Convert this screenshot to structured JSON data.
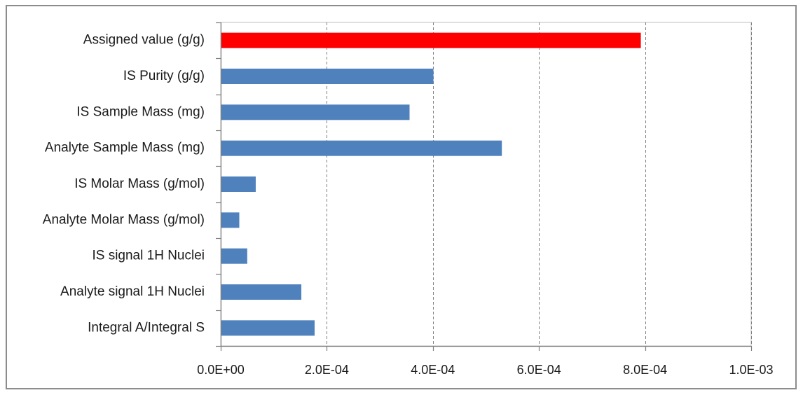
{
  "chart_data": {
    "type": "bar",
    "orientation": "horizontal",
    "categories": [
      "Assigned value (g/g)",
      "IS Purity (g/g)",
      "IS Sample Mass (mg)",
      "Analyte Sample Mass (mg)",
      "IS Molar Mass (g/mol)",
      "Analyte Molar Mass (g/mol)",
      "IS signal 1H Nuclei",
      "Analyte signal 1H Nuclei",
      "Integral A/Integral S"
    ],
    "values": [
      0.000792,
      0.000401,
      0.000356,
      0.00053,
      6.6e-05,
      3.5e-05,
      5e-05,
      0.000152,
      0.000177
    ],
    "bar_colors": [
      "#ff0000",
      "#4f81bd",
      "#4f81bd",
      "#4f81bd",
      "#4f81bd",
      "#4f81bd",
      "#4f81bd",
      "#4f81bd",
      "#4f81bd"
    ],
    "xlim": [
      0,
      0.001
    ],
    "x_ticks": [
      0,
      0.0002,
      0.0004,
      0.0006,
      0.0008,
      0.001
    ],
    "x_tick_labels": [
      "0.0E+00",
      "2.0E-04",
      "4.0E-04",
      "6.0E-04",
      "8.0E-04",
      "1.0E-03"
    ],
    "grid": "vertical-dashed",
    "title": "",
    "xlabel": "",
    "ylabel": "",
    "legend": "none"
  }
}
